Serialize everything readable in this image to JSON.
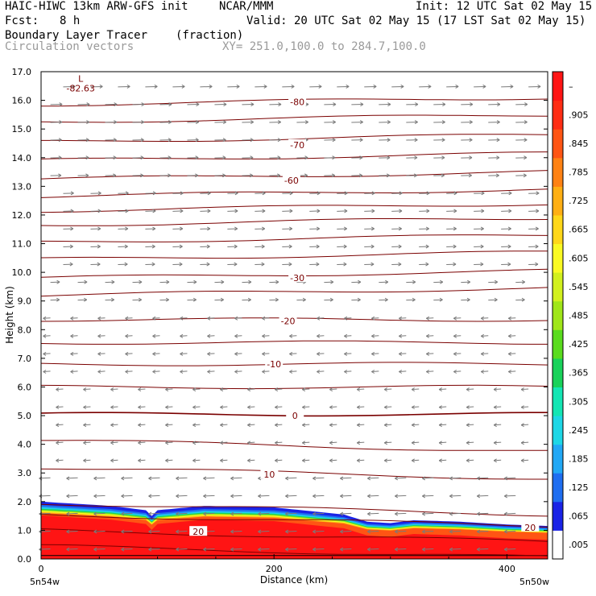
{
  "header": {
    "model": "HAIC-HIWC 13km ARW-GFS init",
    "org": "NCAR/MMM",
    "init": "Init: 12 UTC Sat 02 May 15",
    "fcst_label": "Fcst:",
    "fcst_value": "8 h",
    "valid": "Valid: 20 UTC Sat 02 May 15 (17 LST Sat 02 May 15)",
    "field_name": "Boundary Layer Tracer",
    "field_units": "(fraction)",
    "vector_label": "Circulation vectors",
    "xy_range": "XY= 251.0,100.0 to 284.7,100.0"
  },
  "chart_data": {
    "type": "heatmap",
    "title": "Boundary Layer Tracer",
    "xlabel": "Distance (km)",
    "ylabel": "Height (km)",
    "xlim": [
      0,
      435
    ],
    "ylim": [
      0,
      17
    ],
    "x_ticks": [
      "0",
      "200",
      "400"
    ],
    "x_tick_values": [
      0,
      200,
      400
    ],
    "x_end_labels": [
      "5n54w",
      "5n50w"
    ],
    "y_ticks": [
      "0.0",
      "1.0",
      "2.0",
      "3.0",
      "4.0",
      "5.0",
      "6.0",
      "7.0",
      "8.0",
      "9.0",
      "10.0",
      "11.0",
      "12.0",
      "13.0",
      "14.0",
      "15.0",
      "16.0",
      "17.0"
    ],
    "colorbar": {
      "labels": [
        ".005",
        ".065",
        ".125",
        ".185",
        ".245",
        ".305",
        ".365",
        ".425",
        ".485",
        ".545",
        ".605",
        ".665",
        ".725",
        ".785",
        ".845",
        ".905",
        "–"
      ],
      "colors": [
        "#ffffff",
        "#1a23e6",
        "#1f6ef0",
        "#22a8f5",
        "#1ed7e6",
        "#14e6b4",
        "#19d25a",
        "#5adc1e",
        "#a0e619",
        "#d2f01e",
        "#fafa23",
        "#ffd719",
        "#ffaf14",
        "#ff8214",
        "#ff5514",
        "#ff2d14",
        "#ff1414"
      ]
    },
    "tracer_top_km": {
      "x": [
        0,
        20,
        60,
        90,
        95,
        100,
        140,
        200,
        260,
        280,
        300,
        320,
        360,
        400,
        435
      ],
      "y": [
        2.0,
        1.95,
        1.85,
        1.7,
        1.5,
        1.7,
        1.85,
        1.8,
        1.55,
        1.3,
        1.25,
        1.35,
        1.3,
        1.2,
        1.15
      ]
    },
    "temperature_contours": {
      "units": "C",
      "labels": [
        {
          "text": "-80",
          "x": 220,
          "y": 15.95
        },
        {
          "text": "-70",
          "x": 220,
          "y": 14.45
        },
        {
          "text": "-60",
          "x": 215,
          "y": 13.2
        },
        {
          "text": "-30",
          "x": 220,
          "y": 9.8
        },
        {
          "text": "-20",
          "x": 212,
          "y": 8.3
        },
        {
          "text": "-10",
          "x": 200,
          "y": 6.8
        },
        {
          "text": "0",
          "x": 218,
          "y": 5.0
        },
        {
          "text": "10",
          "x": 196,
          "y": 2.95
        },
        {
          "text": "20",
          "x": 135,
          "y": 0.95
        },
        {
          "text": "20",
          "x": 420,
          "y": 1.1
        }
      ],
      "min_marker": {
        "text": "L",
        "value": "-82.63",
        "x": 34,
        "y": 16.7
      }
    }
  }
}
